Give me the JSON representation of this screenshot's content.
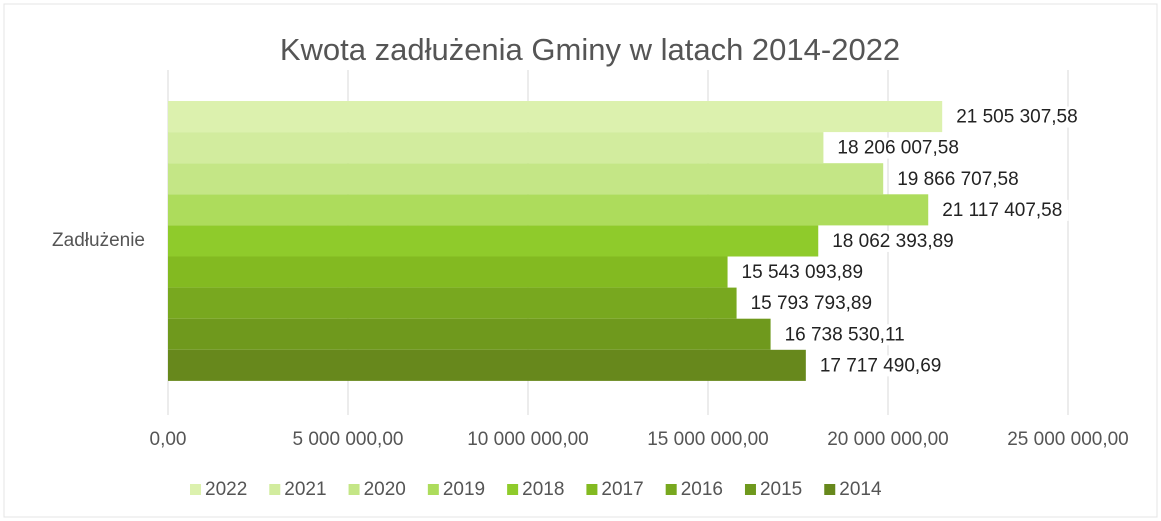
{
  "chart_data": {
    "type": "bar",
    "orientation": "horizontal",
    "title": "Kwota zadłużenia Gminy w latach 2014-2022",
    "categories": [
      "Zadłużenie"
    ],
    "series": [
      {
        "name": "2022",
        "color": "#dcf1ae",
        "values": [
          21505307.58
        ],
        "value_labels": [
          "21 505 307,58"
        ]
      },
      {
        "name": "2021",
        "color": "#d2ec9e",
        "values": [
          18206007.58
        ],
        "value_labels": [
          "18 206 007,58"
        ]
      },
      {
        "name": "2020",
        "color": "#c4e686",
        "values": [
          19866707.58
        ],
        "value_labels": [
          "19 866 707,58"
        ]
      },
      {
        "name": "2019",
        "color": "#addc5c",
        "values": [
          21117407.58
        ],
        "value_labels": [
          "21 117 407,58"
        ]
      },
      {
        "name": "2018",
        "color": "#8fcb2b",
        "values": [
          18062393.89
        ],
        "value_labels": [
          "18 062 393,89"
        ]
      },
      {
        "name": "2017",
        "color": "#83ba21",
        "values": [
          15543093.89
        ],
        "value_labels": [
          "15 543 093,89"
        ]
      },
      {
        "name": "2016",
        "color": "#78a81f",
        "values": [
          15793793.89
        ],
        "value_labels": [
          "15 793 793,89"
        ]
      },
      {
        "name": "2015",
        "color": "#6f991d",
        "values": [
          16738530.11
        ],
        "value_labels": [
          "16 738 530,11"
        ]
      },
      {
        "name": "2014",
        "color": "#67881c",
        "values": [
          17717490.69
        ],
        "value_labels": [
          "17 717 490,69"
        ]
      }
    ],
    "xlim": [
      0,
      25000000
    ],
    "xticks": [
      {
        "value": 0,
        "label": "0,00"
      },
      {
        "value": 5000000,
        "label": "5 000 000,00"
      },
      {
        "value": 10000000,
        "label": "10 000 000,00"
      },
      {
        "value": 15000000,
        "label": "15 000 000,00"
      },
      {
        "value": 20000000,
        "label": "20 000 000,00"
      },
      {
        "value": 25000000,
        "label": "25 000 000,00"
      }
    ],
    "grid": true,
    "legend": "bottom"
  }
}
